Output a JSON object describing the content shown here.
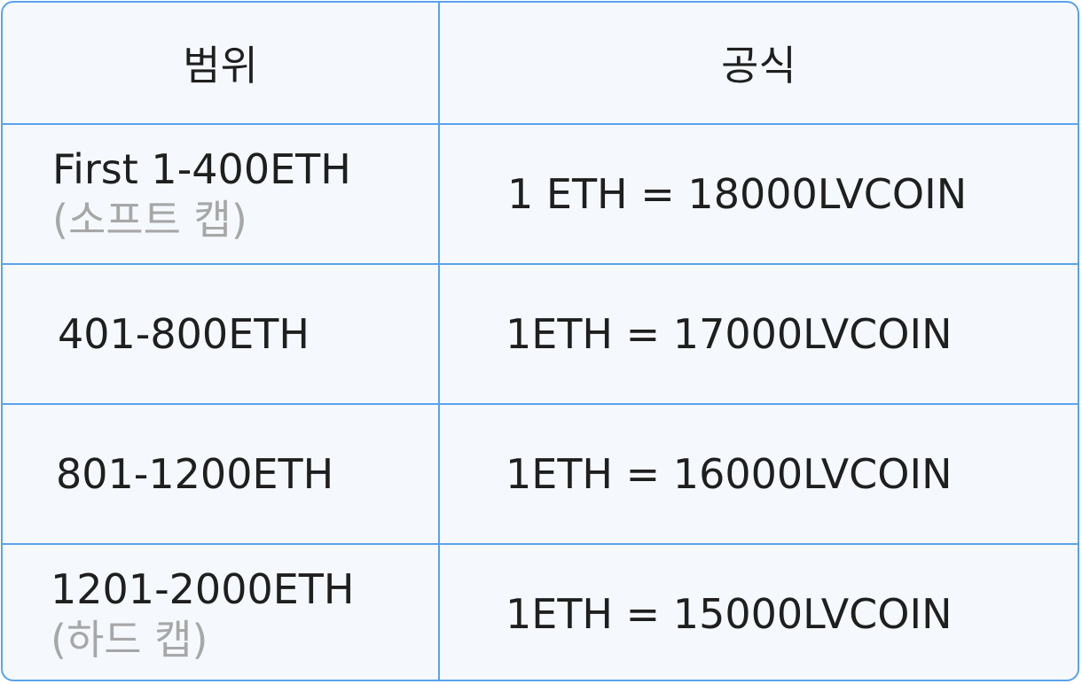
{
  "table": {
    "headers": {
      "range": "범위",
      "formula": "공식"
    },
    "rows": [
      {
        "range": "First 1-400ETH",
        "range_note": "(소프트 캡)",
        "formula": "1 ETH = 18000LVCOIN"
      },
      {
        "range": "401-800ETH",
        "range_note": "",
        "formula": "1ETH = 17000LVCOIN"
      },
      {
        "range": "801-1200ETH",
        "range_note": "",
        "formula": "1ETH = 16000LVCOIN"
      },
      {
        "range": "1201-2000ETH",
        "range_note": "(하드 캡)",
        "formula": "1ETH = 15000LVCOIN"
      }
    ],
    "colors": {
      "border": "#5aa2ec",
      "background": "#f5f9fe",
      "text": "#1f1f1f",
      "note_text": "#a7a7a7"
    }
  }
}
